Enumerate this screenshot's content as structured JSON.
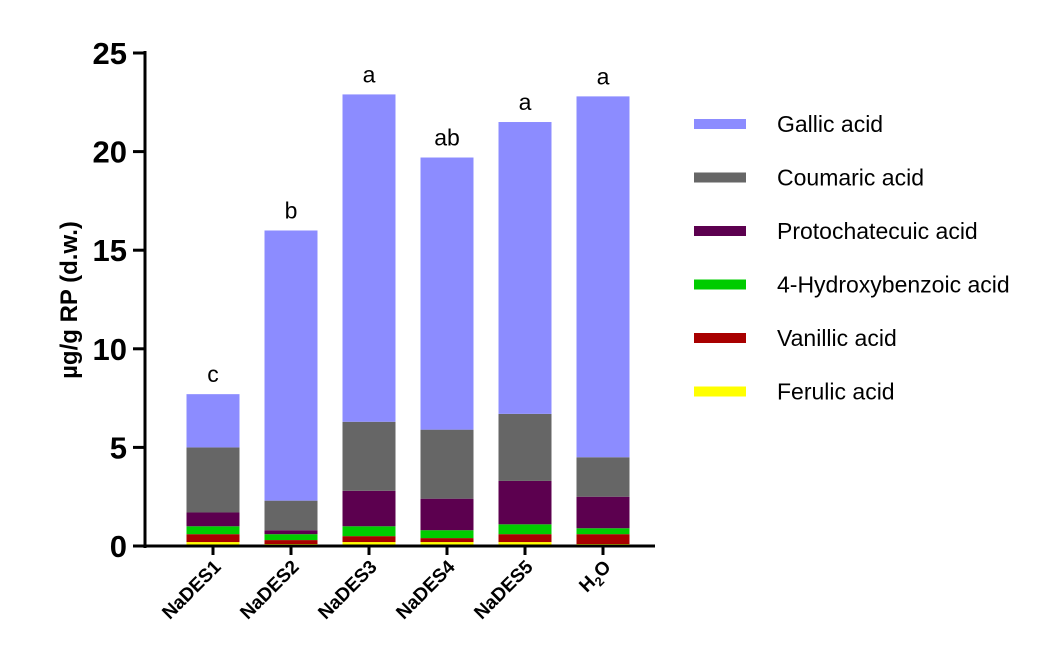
{
  "chart_data": {
    "type": "bar",
    "stacked": true,
    "categories": [
      "NaDES1",
      "NaDES2",
      "NaDES3",
      "NaDES4",
      "NaDES5",
      "H2O"
    ],
    "category_display": [
      {
        "main": "NaDES1",
        "sub": "",
        "tail": ""
      },
      {
        "main": "NaDES2",
        "sub": "",
        "tail": ""
      },
      {
        "main": "NaDES3",
        "sub": "",
        "tail": ""
      },
      {
        "main": "NaDES4",
        "sub": "",
        "tail": ""
      },
      {
        "main": "NaDES5",
        "sub": "",
        "tail": ""
      },
      {
        "main": "H",
        "sub": "2",
        "tail": "O"
      }
    ],
    "series": [
      {
        "name": "Ferulic acid",
        "color": "#ffff00",
        "values": [
          0.2,
          0.1,
          0.2,
          0.2,
          0.2,
          0.1
        ]
      },
      {
        "name": "Vanillic acid",
        "color": "#a80000",
        "values": [
          0.4,
          0.2,
          0.3,
          0.2,
          0.4,
          0.5
        ]
      },
      {
        "name": "4-Hydroxybenzoic acid",
        "color": "#00cc00",
        "values": [
          0.4,
          0.3,
          0.5,
          0.4,
          0.5,
          0.3
        ]
      },
      {
        "name": "Protochatecuic acid",
        "color": "#5c004f",
        "values": [
          0.7,
          0.2,
          1.8,
          1.6,
          2.2,
          1.6
        ]
      },
      {
        "name": "Coumaric acid",
        "color": "#666666",
        "values": [
          3.3,
          1.5,
          3.5,
          3.5,
          3.4,
          2.0
        ]
      },
      {
        "name": "Gallic acid",
        "color": "#8c8cff",
        "values": [
          2.7,
          13.7,
          16.6,
          13.8,
          14.8,
          18.3
        ]
      }
    ],
    "annotations": [
      "c",
      "b",
      "a",
      "ab",
      "a",
      "a"
    ],
    "ylabel": "µg/g RP (d.w.)",
    "xlabel": "",
    "ylim": [
      0,
      25
    ],
    "yticks": [
      0,
      5,
      10,
      15,
      20,
      25
    ],
    "legend_position": "right",
    "legend_order": [
      "Gallic acid",
      "Coumaric acid",
      "Protochatecuic acid",
      "4-Hydroxybenzoic acid",
      "Vanillic acid",
      "Ferulic acid"
    ],
    "grid": false
  }
}
